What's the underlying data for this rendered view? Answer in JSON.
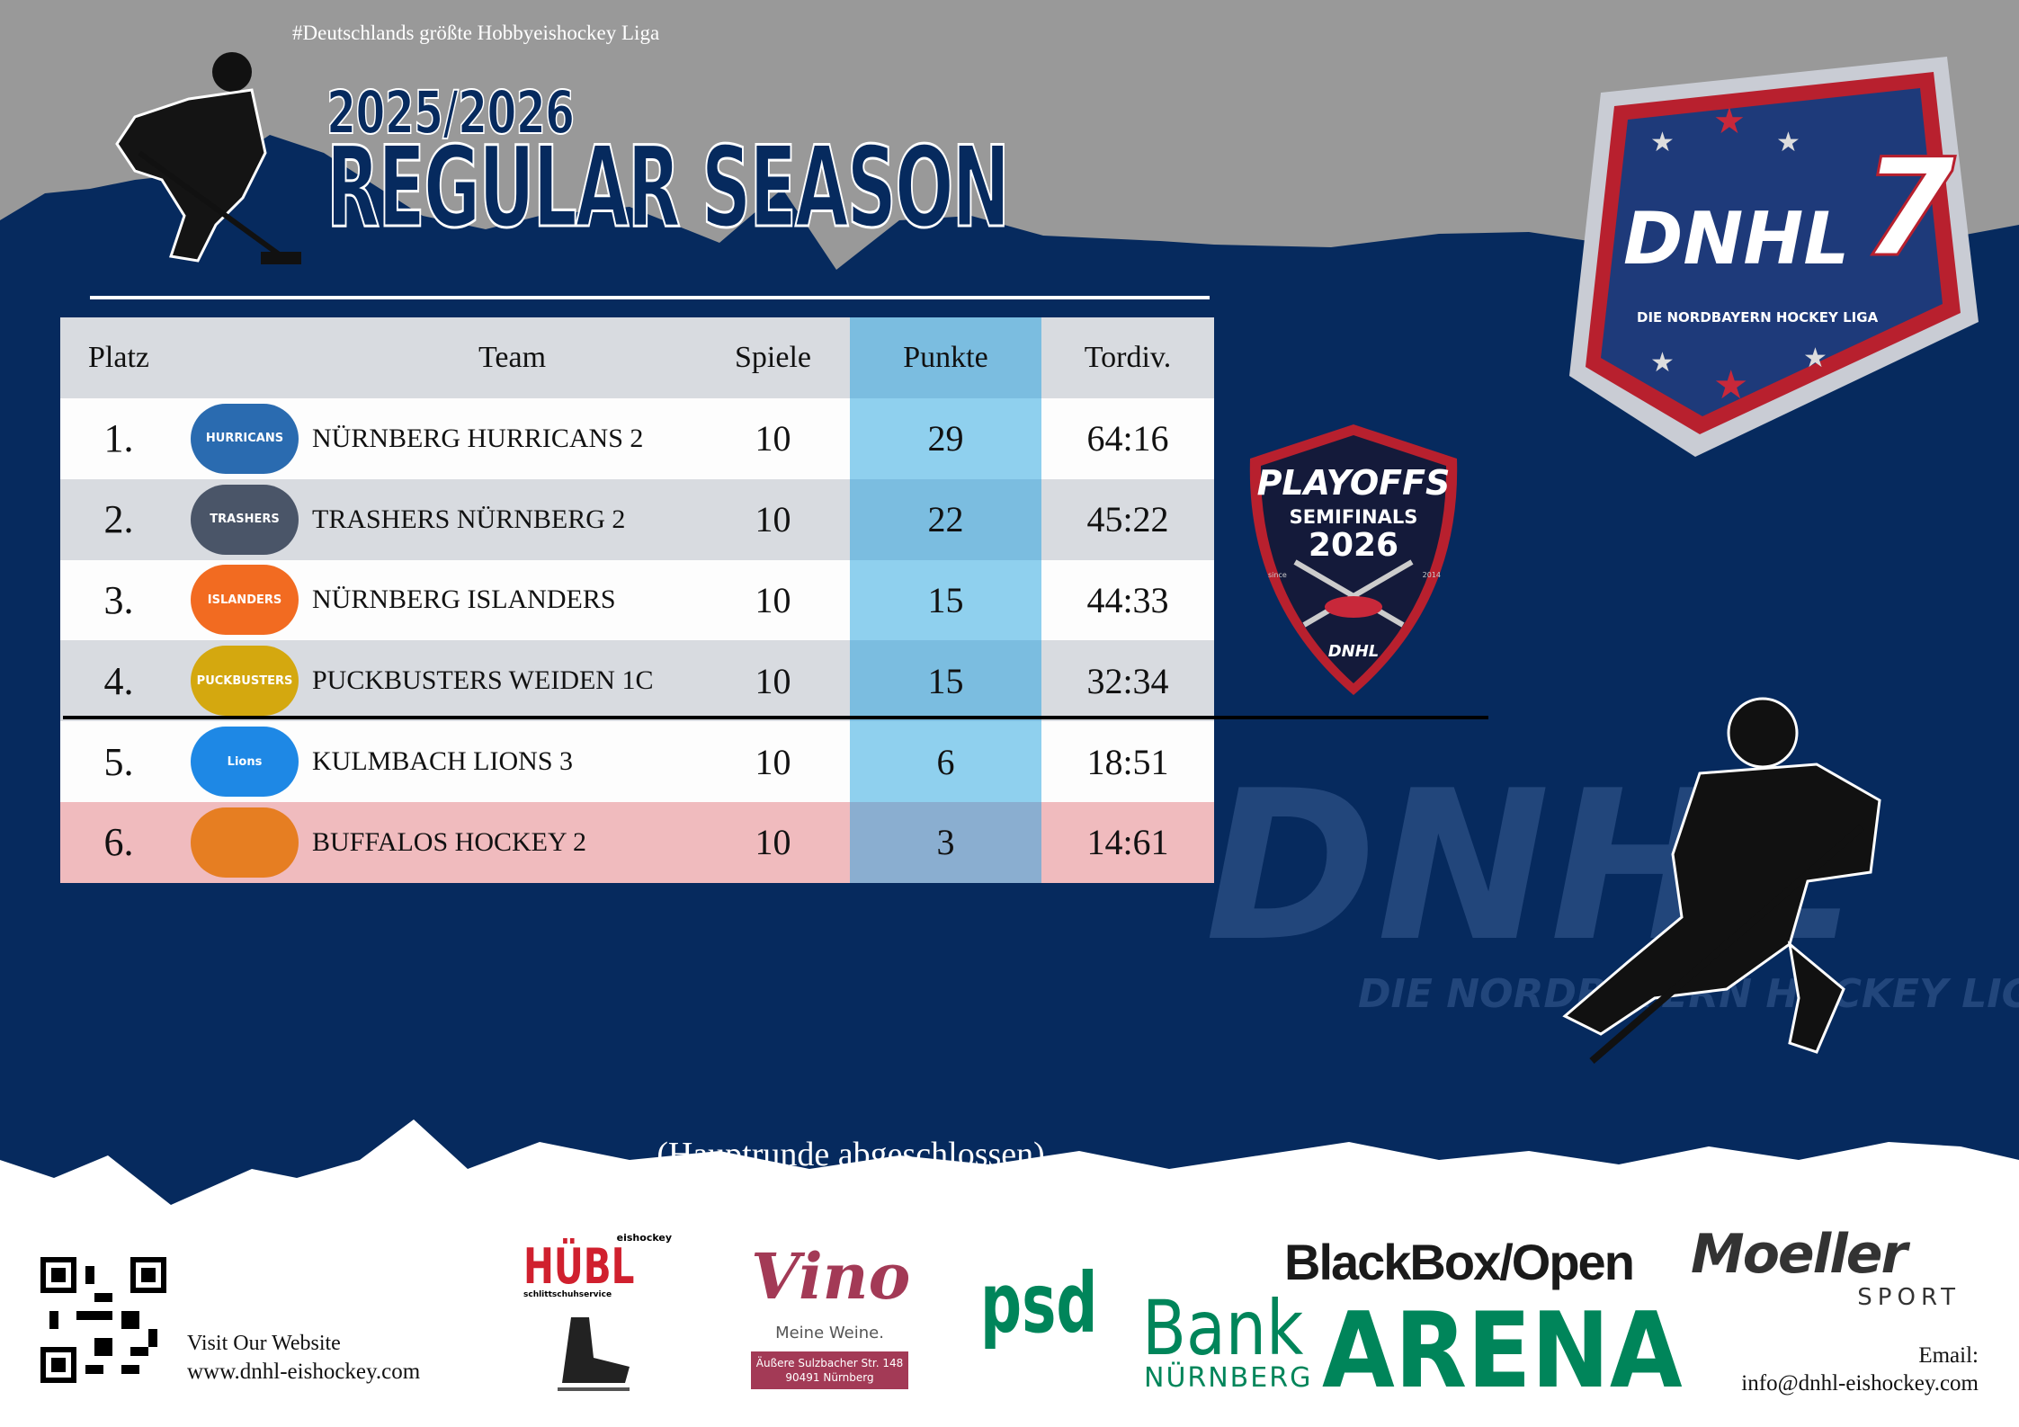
{
  "header": {
    "tagline": "#Deutschlands größte Hobbyeishockey Liga",
    "season": "2025/2026",
    "title": "REGULAR SEASON"
  },
  "table": {
    "columns": [
      "Platz",
      "Team",
      "Spiele",
      "Punkte",
      "Tordiv."
    ],
    "rows": [
      {
        "rank": "1.",
        "logo": "HURRICANS",
        "team": "NÜRNBERG HURRICANS 2",
        "games": "10",
        "points": "29",
        "goals": "64:16"
      },
      {
        "rank": "2.",
        "logo": "TRASHERS",
        "team": "TRASHERS NÜRNBERG 2",
        "games": "10",
        "points": "22",
        "goals": "45:22"
      },
      {
        "rank": "3.",
        "logo": "ISLANDERS",
        "team": "NÜRNBERG ISLANDERS",
        "games": "10",
        "points": "15",
        "goals": "44:33"
      },
      {
        "rank": "4.",
        "logo": "PUCKBUSTERS",
        "team": "PUCKBUSTERS WEIDEN 1C",
        "games": "10",
        "points": "15",
        "goals": "32:34"
      },
      {
        "rank": "5.",
        "logo": "Lions",
        "team": "KULMBACH LIONS 3",
        "games": "10",
        "points": "6",
        "goals": "18:51"
      },
      {
        "rank": "6.",
        "logo": "",
        "team": "BUFFALOS HOCKEY 2",
        "games": "10",
        "points": "3",
        "goals": "14:61"
      }
    ]
  },
  "badges": {
    "dnhl": "DNHL",
    "dnhl_number": "7",
    "dnhl_sub": "DIE NORDBAYERN HOCKEY LIGA",
    "playoffs": "PLAYOFFS",
    "semifinals": "SEMIFINALS",
    "year": "2026",
    "since": "since",
    "since_year": "2014",
    "watermark": "DNHL",
    "watermark_sub": "DIE NORDBAYERN HOCKEY LIGA"
  },
  "status_note": "(Hauptrunde abgeschlossen)",
  "footer": {
    "visit": "Visit Our Website",
    "website": "www.dnhl-eishockey.com",
    "email_label": "Email:",
    "email": "info@dnhl-eishockey.com",
    "sponsors": {
      "huebl": "HÜBL",
      "huebl_top": "eishockey",
      "huebl_sub": "schlittschuhservice",
      "vino": "Vino",
      "vino_slogan": "Meine Weine.",
      "vino_addr1": "Äußere Sulzbacher Str. 148",
      "vino_addr2": "90491 Nürnberg",
      "psd": "psd",
      "bank": "Bank",
      "nuernberg": "NÜRNBERG",
      "arena": "ARENA",
      "blackbox": "BlackBox/Open",
      "moeller": "Moeller",
      "sport": "SPORT"
    }
  },
  "colors": {
    "navy": "#062a5e",
    "gray": "#999999",
    "punkte": "#8fd0ee",
    "relegation": "#f0bbbe",
    "psd_green": "#00855a",
    "vino": "#a33a56"
  }
}
